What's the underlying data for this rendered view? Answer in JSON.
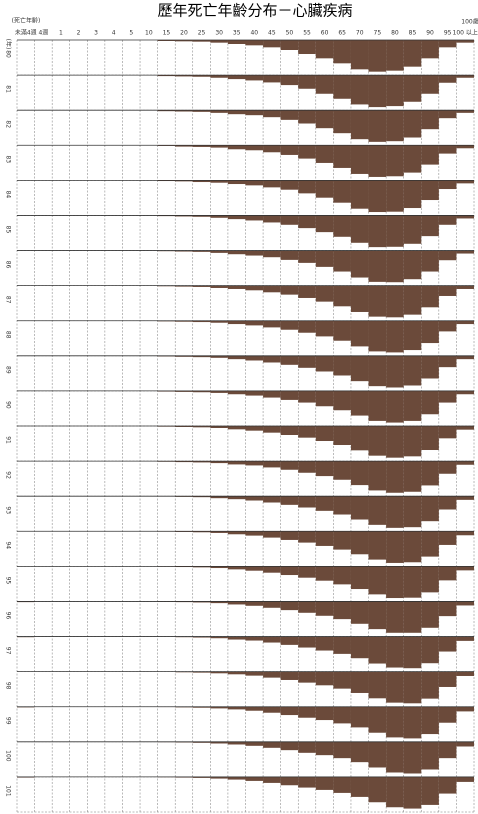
{
  "chart_data": {
    "type": "bar-grid",
    "title": "歷年死亡年齡分布－心臟疾病",
    "x_label": "(死亡年齡)",
    "y_label": "(年)",
    "unit_label": "100歲",
    "color": "#6b4a3a",
    "ylim": [
      0,
      100
    ],
    "categories": [
      "未滿4週",
      "4週",
      "1",
      "2",
      "3",
      "4",
      "5",
      "10",
      "15",
      "20",
      "25",
      "30",
      "35",
      "40",
      "45",
      "50",
      "55",
      "60",
      "65",
      "70",
      "75",
      "80",
      "85",
      "90",
      "95",
      "100 以上"
    ],
    "series": [
      {
        "name": "80",
        "values": [
          0,
          0,
          0,
          0,
          0,
          0,
          0,
          0,
          3,
          4,
          5,
          8,
          12,
          16,
          22,
          30,
          42,
          55,
          70,
          88,
          95,
          92,
          80,
          55,
          22,
          8
        ]
      },
      {
        "name": "81",
        "values": [
          0,
          0,
          0,
          0,
          0,
          0,
          0,
          0,
          3,
          4,
          5,
          8,
          12,
          16,
          22,
          30,
          41,
          56,
          71,
          88,
          96,
          93,
          80,
          56,
          23,
          8
        ]
      },
      {
        "name": "82",
        "values": [
          0,
          0,
          0,
          0,
          0,
          0,
          0,
          0,
          3,
          4,
          5,
          8,
          12,
          15,
          21,
          29,
          40,
          54,
          69,
          87,
          95,
          93,
          82,
          57,
          24,
          8
        ]
      },
      {
        "name": "83",
        "values": [
          0,
          0,
          0,
          0,
          0,
          0,
          0,
          0,
          2,
          4,
          5,
          7,
          12,
          15,
          21,
          29,
          40,
          53,
          68,
          86,
          95,
          93,
          82,
          58,
          25,
          9
        ]
      },
      {
        "name": "84",
        "values": [
          0,
          0,
          0,
          0,
          0,
          0,
          0,
          0,
          2,
          3,
          5,
          7,
          11,
          15,
          21,
          28,
          39,
          52,
          67,
          85,
          95,
          94,
          83,
          59,
          26,
          9
        ]
      },
      {
        "name": "85",
        "values": [
          0,
          0,
          0,
          0,
          0,
          0,
          0,
          0,
          2,
          3,
          4,
          7,
          11,
          15,
          21,
          28,
          38,
          50,
          64,
          82,
          95,
          94,
          85,
          62,
          28,
          9
        ]
      },
      {
        "name": "86",
        "values": [
          0,
          0,
          0,
          0,
          0,
          0,
          0,
          0,
          2,
          3,
          4,
          7,
          11,
          15,
          20,
          28,
          37,
          49,
          63,
          81,
          94,
          95,
          86,
          63,
          29,
          9
        ]
      },
      {
        "name": "87",
        "values": [
          0,
          0,
          0,
          0,
          0,
          0,
          0,
          0,
          2,
          3,
          4,
          7,
          10,
          14,
          20,
          27,
          37,
          48,
          62,
          79,
          93,
          95,
          87,
          65,
          31,
          10
        ]
      },
      {
        "name": "88",
        "values": [
          0,
          0,
          0,
          0,
          0,
          0,
          0,
          0,
          2,
          3,
          4,
          6,
          10,
          14,
          20,
          27,
          36,
          47,
          60,
          77,
          92,
          95,
          88,
          67,
          32,
          10
        ]
      },
      {
        "name": "89",
        "values": [
          0,
          0,
          0,
          0,
          0,
          0,
          0,
          0,
          2,
          3,
          4,
          6,
          10,
          14,
          20,
          27,
          36,
          47,
          59,
          76,
          91,
          95,
          89,
          68,
          34,
          10
        ]
      },
      {
        "name": "90",
        "values": [
          0,
          0,
          0,
          0,
          0,
          0,
          0,
          0,
          2,
          3,
          4,
          6,
          10,
          14,
          20,
          27,
          35,
          46,
          58,
          74,
          90,
          95,
          90,
          70,
          35,
          10
        ]
      },
      {
        "name": "91",
        "values": [
          0,
          0,
          0,
          0,
          0,
          0,
          0,
          0,
          2,
          3,
          4,
          6,
          10,
          14,
          20,
          27,
          35,
          45,
          57,
          73,
          89,
          95,
          91,
          72,
          37,
          11
        ]
      },
      {
        "name": "92",
        "values": [
          0,
          0,
          0,
          0,
          0,
          0,
          0,
          0,
          2,
          3,
          4,
          6,
          10,
          13,
          19,
          26,
          35,
          45,
          56,
          72,
          88,
          95,
          92,
          73,
          38,
          11
        ]
      },
      {
        "name": "93",
        "values": [
          0,
          0,
          0,
          0,
          0,
          0,
          0,
          0,
          1,
          2,
          3,
          6,
          9,
          13,
          19,
          26,
          34,
          44,
          55,
          70,
          86,
          95,
          93,
          75,
          40,
          11
        ]
      },
      {
        "name": "94",
        "values": [
          0,
          0,
          0,
          0,
          0,
          0,
          0,
          0,
          1,
          2,
          3,
          5,
          9,
          13,
          19,
          26,
          34,
          44,
          55,
          69,
          85,
          95,
          93,
          76,
          41,
          12
        ]
      },
      {
        "name": "95",
        "values": [
          0,
          0,
          0,
          0,
          0,
          0,
          0,
          0,
          1,
          2,
          3,
          5,
          9,
          13,
          19,
          26,
          34,
          43,
          54,
          68,
          84,
          95,
          94,
          78,
          42,
          12
        ]
      },
      {
        "name": "96",
        "values": [
          2,
          0,
          0,
          0,
          0,
          0,
          0,
          0,
          1,
          2,
          3,
          5,
          9,
          13,
          19,
          26,
          34,
          43,
          53,
          67,
          83,
          94,
          94,
          79,
          44,
          12
        ]
      },
      {
        "name": "97",
        "values": [
          2,
          0,
          0,
          0,
          0,
          0,
          0,
          0,
          1,
          2,
          3,
          5,
          9,
          12,
          18,
          25,
          33,
          42,
          52,
          65,
          81,
          93,
          95,
          80,
          45,
          13
        ]
      },
      {
        "name": "98",
        "values": [
          0,
          0,
          0,
          0,
          0,
          0,
          0,
          0,
          1,
          2,
          3,
          5,
          8,
          12,
          18,
          25,
          33,
          41,
          51,
          64,
          80,
          93,
          95,
          81,
          46,
          13
        ]
      },
      {
        "name": "99",
        "values": [
          2,
          0,
          0,
          0,
          0,
          0,
          0,
          0,
          1,
          2,
          3,
          5,
          8,
          12,
          18,
          25,
          33,
          40,
          50,
          62,
          78,
          92,
          95,
          82,
          48,
          14
        ]
      },
      {
        "name": "100",
        "values": [
          0,
          0,
          0,
          0,
          0,
          0,
          0,
          0,
          1,
          2,
          3,
          5,
          8,
          12,
          18,
          25,
          33,
          40,
          49,
          61,
          77,
          92,
          95,
          83,
          49,
          14
        ]
      },
      {
        "name": "101",
        "values": [
          2,
          0,
          0,
          0,
          0,
          0,
          0,
          0,
          1,
          2,
          3,
          5,
          8,
          12,
          18,
          25,
          32,
          39,
          48,
          60,
          76,
          91,
          95,
          84,
          50,
          15
        ]
      }
    ]
  }
}
